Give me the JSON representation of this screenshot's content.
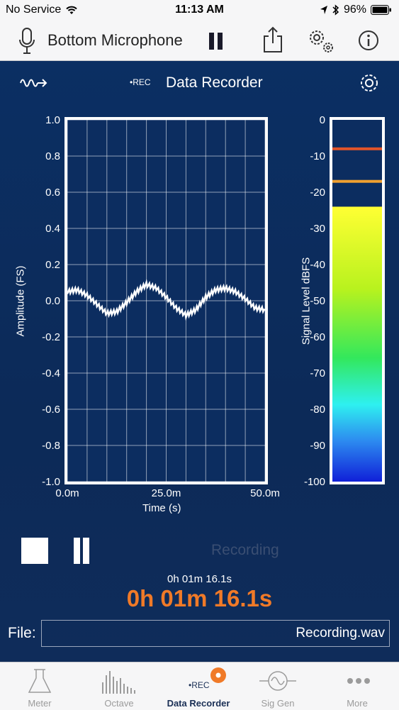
{
  "status_bar": {
    "carrier": "No Service",
    "time": "11:13 AM",
    "battery": "96%"
  },
  "top_bar": {
    "mic_name": "Bottom Microphone",
    "icons": [
      "microphone-icon",
      "pause-icon",
      "share-icon",
      "settings-gear-icon",
      "info-icon"
    ]
  },
  "panel": {
    "rec_tag": "•REC",
    "title": "Data Recorder",
    "icons": [
      "waveform-export-icon",
      "gear-icon"
    ]
  },
  "chart_data": [
    {
      "type": "line",
      "xlabel": "Time (s)",
      "ylabel": "Amplitude (FS)",
      "x_ticks": [
        "0.0m",
        "25.0m",
        "50.0m"
      ],
      "y_ticks": [
        "1.0",
        "0.8",
        "0.6",
        "0.4",
        "0.2",
        "0.0",
        "-0.2",
        "-0.4",
        "-0.6",
        "-0.8",
        "-1.0"
      ],
      "xlim": [
        0,
        50
      ],
      "ylim": [
        -1.0,
        1.0
      ],
      "grid": true,
      "series": [
        {
          "x": [
            0,
            2.5,
            5,
            7.5,
            10,
            12.5,
            15,
            17.5,
            20,
            22.5,
            25,
            27.5,
            30,
            32.5,
            35,
            37.5,
            40,
            42.5,
            45,
            47.5,
            50
          ],
          "y": [
            0.05,
            0.06,
            0.03,
            -0.02,
            -0.07,
            -0.06,
            -0.01,
            0.05,
            0.09,
            0.07,
            0.02,
            -0.04,
            -0.08,
            -0.05,
            0.02,
            0.06,
            0.07,
            0.05,
            0.01,
            -0.04,
            -0.05
          ]
        }
      ],
      "color": "#ffffff"
    },
    {
      "type": "bar",
      "ylabel": "Signal Level dBFS",
      "y_ticks": [
        "0",
        "-10",
        "-20",
        "-30",
        "-40",
        "-50",
        "-60",
        "-70",
        "-80",
        "-90",
        "-100"
      ],
      "ylim": [
        -100,
        0
      ],
      "level_dbfs": -24,
      "peak_dbfs": -8,
      "avg_dbfs": -17,
      "colors": {
        "peak": "#e2542a",
        "avg": "#f0a030"
      }
    }
  ],
  "controls": {
    "status": "Recording"
  },
  "timer": {
    "small": "0h 01m 16.1s",
    "big": "0h 01m 16.1s"
  },
  "file": {
    "label": "File:",
    "value": "Recording.wav"
  },
  "tabs": [
    {
      "label": "Meter",
      "icon": "flask-icon"
    },
    {
      "label": "Octave",
      "icon": "octave-bars-icon"
    },
    {
      "label": "Data Recorder",
      "icon": "rec-icon",
      "active": true
    },
    {
      "label": "Sig Gen",
      "icon": "sine-wave-icon"
    },
    {
      "label": "More",
      "icon": "more-dots-icon"
    }
  ]
}
